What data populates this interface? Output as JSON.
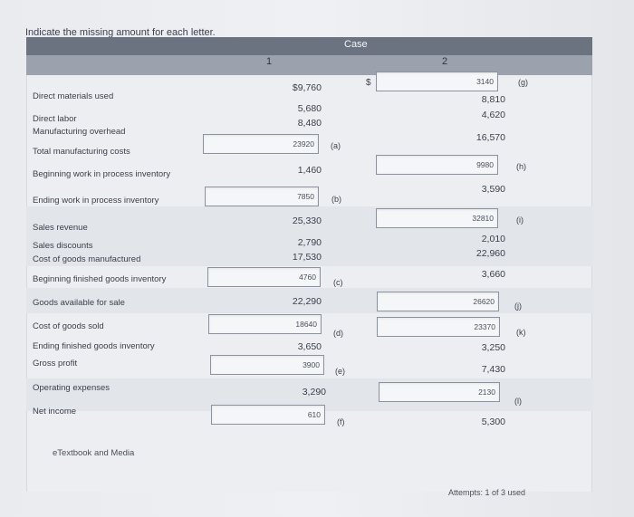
{
  "instruction": "Indicate the missing amount for each letter.",
  "case_label": "Case",
  "columns": [
    "1",
    "2"
  ],
  "currency": "$",
  "rows": {
    "direct_materials": {
      "label": "Direct materials used",
      "c1": "$9,760",
      "c2_box": "3140",
      "c2_letter": "(g)"
    },
    "direct_labor": {
      "label": "Direct labor",
      "c1": "5,680",
      "c2": "8,810"
    },
    "mfg_overhead": {
      "label": "Manufacturing overhead",
      "c1": "8,480",
      "c2": "4,620"
    },
    "total_mfg": {
      "label": "Total manufacturing costs",
      "c1_box": "23920",
      "c1_letter": "(a)",
      "c2": "16,570"
    },
    "beginning_wip": {
      "label": "Beginning work in process inventory",
      "c1": "1,460",
      "c2_box": "9980",
      "c2_letter": "(h)"
    },
    "ending_wip": {
      "label": "Ending work in process inventory",
      "c1_box": "7850",
      "c1_letter": "(b)",
      "c2": "3,590"
    },
    "sales_revenue": {
      "label": "Sales revenue",
      "c1": "25,330",
      "c2_box": "32810",
      "c2_letter": "(i)"
    },
    "sales_discounts": {
      "label": "Sales discounts",
      "c1": "2,790",
      "c2": "2,010"
    },
    "cogm": {
      "label": "Cost of goods manufactured",
      "c1": "17,530",
      "c2": "22,960"
    },
    "beginning_fg": {
      "label": "Beginning finished goods inventory",
      "c1_box": "4760",
      "c1_letter": "(c)",
      "c2": "3,660"
    },
    "goods_available": {
      "label": "Goods available for sale",
      "c1": "22,290",
      "c2_box": "26620",
      "c2_letter": "(j)"
    },
    "cogs": {
      "label": "Cost of goods sold",
      "c1_box": "18640",
      "c1_letter": "(d)",
      "c2_box": "23370",
      "c2_letter": "(k)"
    },
    "ending_fg": {
      "label": "Ending finished goods inventory",
      "c1": "3,650",
      "c2": "3,250"
    },
    "gross_profit": {
      "label": "Gross profit",
      "c1_box": "3900",
      "c1_letter": "(e)",
      "c2": "7,430"
    },
    "operating_expenses": {
      "label": "Operating expenses",
      "c1": "3,290",
      "c2_box": "2130",
      "c2_letter": "(l)"
    },
    "net_income": {
      "label": "Net income",
      "c1_box": "610",
      "c1_letter": "(f)",
      "c2": "5,300"
    }
  },
  "footer": {
    "etextbook": "eTextbook and Media",
    "attempts": "Attempts: 1 of 3 used"
  }
}
